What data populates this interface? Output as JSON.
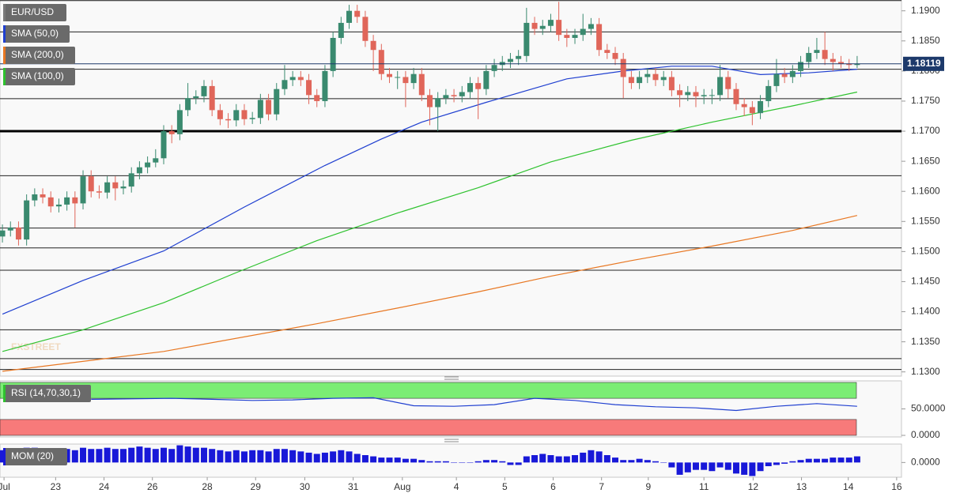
{
  "chart_data": [
    {
      "type": "candlestick",
      "title": "EUR/USD",
      "up_color": "#3a8a6f",
      "down_color": "#e0665a",
      "open": [
        1.1525,
        1.1535,
        1.154,
        1.152,
        1.1585,
        1.1595,
        1.159,
        1.1575,
        1.1578,
        1.159,
        1.158,
        1.1625,
        1.16,
        1.1598,
        1.1615,
        1.1605,
        1.1608,
        1.163,
        1.164,
        1.1648,
        1.1655,
        1.17,
        1.1695,
        1.1735,
        1.1755,
        1.1758,
        1.1775,
        1.1735,
        1.172,
        1.1718,
        1.1735,
        1.172,
        1.1722,
        1.1752,
        1.1728,
        1.177,
        1.1785,
        1.179,
        1.1785,
        1.176,
        1.175,
        1.18,
        1.1855,
        1.188,
        1.19,
        1.189,
        1.185,
        1.1835,
        1.1795,
        1.179,
        1.179,
        1.178,
        1.1795,
        1.176,
        1.174,
        1.1755,
        1.176,
        1.1758,
        1.1765,
        1.178,
        1.177,
        1.18,
        1.181,
        1.1815,
        1.182,
        1.1825,
        1.188,
        1.187,
        1.1875,
        1.1885,
        1.186,
        1.1855,
        1.186,
        1.187,
        1.1878,
        1.1835,
        1.183,
        1.182,
        1.179,
        1.178,
        1.179,
        1.1795,
        1.1785,
        1.179,
        1.1768,
        1.176,
        1.1765,
        1.1758,
        1.176,
        1.176,
        1.179,
        1.177,
        1.1745,
        1.174,
        1.173,
        1.175,
        1.1775,
        1.1795,
        1.179,
        1.18,
        1.1815,
        1.183,
        1.1835,
        1.182,
        1.1815,
        1.1812,
        1.181
      ],
      "high": [
        1.1545,
        1.155,
        1.155,
        1.1595,
        1.1605,
        1.1605,
        1.16,
        1.1588,
        1.16,
        1.16,
        1.1635,
        1.1635,
        1.161,
        1.1625,
        1.1625,
        1.1618,
        1.164,
        1.165,
        1.1658,
        1.167,
        1.171,
        1.171,
        1.1745,
        1.178,
        1.1768,
        1.1785,
        1.1785,
        1.1745,
        1.173,
        1.1745,
        1.1745,
        1.1732,
        1.1762,
        1.1762,
        1.178,
        1.181,
        1.18,
        1.18,
        1.1795,
        1.177,
        1.181,
        1.1865,
        1.189,
        1.191,
        1.191,
        1.19,
        1.186,
        1.1845,
        1.1805,
        1.18,
        1.18,
        1.1805,
        1.1805,
        1.177,
        1.1765,
        1.177,
        1.177,
        1.1775,
        1.179,
        1.179,
        1.181,
        1.182,
        1.1825,
        1.183,
        1.1835,
        1.1905,
        1.189,
        1.1885,
        1.1895,
        1.1915,
        1.187,
        1.187,
        1.1895,
        1.1888,
        1.1888,
        1.1845,
        1.184,
        1.183,
        1.18,
        1.18,
        1.1805,
        1.1805,
        1.18,
        1.18,
        1.1778,
        1.1775,
        1.1775,
        1.177,
        1.177,
        1.181,
        1.18,
        1.178,
        1.1755,
        1.175,
        1.176,
        1.1785,
        1.182,
        1.1805,
        1.181,
        1.1825,
        1.184,
        1.1855,
        1.1865,
        1.183,
        1.1825,
        1.182,
        1.1825
      ],
      "low": [
        1.1515,
        1.1525,
        1.151,
        1.151,
        1.1575,
        1.158,
        1.1565,
        1.1565,
        1.1568,
        1.154,
        1.157,
        1.159,
        1.1588,
        1.1588,
        1.1585,
        1.1595,
        1.1598,
        1.162,
        1.163,
        1.164,
        1.1645,
        1.168,
        1.1685,
        1.1725,
        1.1745,
        1.1748,
        1.1725,
        1.171,
        1.1705,
        1.1708,
        1.171,
        1.1712,
        1.1712,
        1.1718,
        1.1718,
        1.176,
        1.1775,
        1.1775,
        1.1745,
        1.174,
        1.174,
        1.179,
        1.1845,
        1.187,
        1.188,
        1.184,
        1.18,
        1.1785,
        1.178,
        1.177,
        1.174,
        1.177,
        1.175,
        1.171,
        1.17,
        1.1745,
        1.1748,
        1.1748,
        1.1755,
        1.172,
        1.176,
        1.179,
        1.18,
        1.1805,
        1.181,
        1.1815,
        1.186,
        1.186,
        1.1865,
        1.185,
        1.184,
        1.1845,
        1.185,
        1.186,
        1.1825,
        1.182,
        1.181,
        1.1755,
        1.177,
        1.177,
        1.178,
        1.1775,
        1.1775,
        1.1758,
        1.174,
        1.175,
        1.174,
        1.1745,
        1.1745,
        1.175,
        1.1755,
        1.1735,
        1.1725,
        1.171,
        1.172,
        1.174,
        1.1765,
        1.178,
        1.178,
        1.179,
        1.1805,
        1.182,
        1.181,
        1.18,
        1.1805,
        1.18,
        1.1805
      ],
      "close": [
        1.1535,
        1.154,
        1.152,
        1.1585,
        1.1595,
        1.159,
        1.1575,
        1.1578,
        1.159,
        1.158,
        1.1625,
        1.16,
        1.1598,
        1.1615,
        1.1605,
        1.1608,
        1.163,
        1.164,
        1.1648,
        1.1655,
        1.17,
        1.1695,
        1.1735,
        1.1755,
        1.1758,
        1.1775,
        1.1735,
        1.172,
        1.1718,
        1.1735,
        1.172,
        1.1722,
        1.1752,
        1.1728,
        1.177,
        1.1785,
        1.179,
        1.1785,
        1.176,
        1.175,
        1.18,
        1.1855,
        1.188,
        1.19,
        1.189,
        1.185,
        1.1835,
        1.1795,
        1.179,
        1.179,
        1.178,
        1.1795,
        1.176,
        1.174,
        1.1755,
        1.176,
        1.1758,
        1.1765,
        1.178,
        1.177,
        1.18,
        1.181,
        1.1815,
        1.182,
        1.1825,
        1.188,
        1.187,
        1.1875,
        1.1885,
        1.186,
        1.1855,
        1.186,
        1.187,
        1.1878,
        1.1835,
        1.183,
        1.182,
        1.179,
        1.178,
        1.179,
        1.1795,
        1.1785,
        1.179,
        1.1768,
        1.176,
        1.1765,
        1.1758,
        1.176,
        1.176,
        1.179,
        1.177,
        1.1745,
        1.174,
        1.173,
        1.175,
        1.1775,
        1.1795,
        1.179,
        1.18,
        1.1815,
        1.183,
        1.1835,
        1.182,
        1.1815,
        1.1812,
        1.181,
        1.1812
      ],
      "series": [
        {
          "name": "SMA (50,0)",
          "color": "#1f3fd0",
          "x": [
            0,
            10,
            20,
            30,
            40,
            47,
            52,
            60,
            70,
            77,
            83,
            88,
            94,
            100,
            106
          ],
          "values": [
            1.1396,
            1.1452,
            1.1501,
            1.1574,
            1.1643,
            1.1687,
            1.1715,
            1.1748,
            1.1787,
            1.18,
            1.1808,
            1.1808,
            1.1794,
            1.1797,
            1.1803
          ]
        },
        {
          "name": "SMA (200,0)",
          "color": "#e87722",
          "x": [
            0,
            20,
            39,
            49,
            59,
            68,
            78,
            88,
            98,
            106
          ],
          "values": [
            1.1301,
            1.1334,
            1.138,
            1.1406,
            1.1433,
            1.1459,
            1.1485,
            1.1509,
            1.1535,
            1.156
          ]
        },
        {
          "name": "SMA (100,0)",
          "color": "#2ec22e",
          "x": [
            0,
            10,
            20,
            29,
            39,
            49,
            59,
            68,
            78,
            88,
            98,
            106
          ],
          "values": [
            1.1334,
            1.137,
            1.1415,
            1.1465,
            1.1518,
            1.1564,
            1.1606,
            1.1649,
            1.1685,
            1.1715,
            1.1742,
            1.1765
          ]
        }
      ],
      "levels": [
        1.1917,
        1.1865,
        1.1803,
        1.1754,
        1.1626,
        1.1539,
        1.1506,
        1.1469,
        1.137,
        1.1322,
        1.1304
      ],
      "key_level": 1.17,
      "last_price": 1.18119,
      "last_price_color": "#1d3a6b",
      "watermark": "FXSTREET",
      "ylim": [
        1.1293,
        1.1918
      ],
      "yticks": [
        {
          "value": 1.19,
          "label": "1.1900"
        },
        {
          "value": 1.185,
          "label": "1.1850"
        },
        {
          "value": 1.18,
          "label": "1.1800"
        },
        {
          "value": 1.175,
          "label": "1.1750"
        },
        {
          "value": 1.17,
          "label": "1.1700"
        },
        {
          "value": 1.165,
          "label": "1.1650"
        },
        {
          "value": 1.16,
          "label": "1.1600"
        },
        {
          "value": 1.155,
          "label": "1.1550"
        },
        {
          "value": 1.15,
          "label": "1.1500"
        },
        {
          "value": 1.145,
          "label": "1.1450"
        },
        {
          "value": 1.14,
          "label": "1.1400"
        },
        {
          "value": 1.135,
          "label": "1.1350"
        },
        {
          "value": 1.13,
          "label": "1.1300"
        }
      ]
    },
    {
      "type": "line",
      "title": "RSI (14,70,30,1)",
      "color": "#1f3fd0",
      "x": [
        11,
        16,
        21,
        26,
        31,
        36,
        41,
        46,
        51,
        56,
        61,
        66,
        71,
        76,
        81,
        86,
        91,
        96,
        101,
        106
      ],
      "values": [
        68,
        69,
        70,
        68,
        66,
        67,
        70,
        71,
        56,
        55,
        58,
        70,
        66,
        58,
        54,
        52,
        47,
        55,
        60,
        55
      ],
      "bands": [
        {
          "from": 70,
          "to": 100,
          "color": "#7bed74"
        },
        {
          "from": 0,
          "to": 30,
          "color": "#f77a7a"
        }
      ],
      "ylim": [
        -3,
        103
      ],
      "yticks": [
        {
          "value": 50,
          "label": "50.0000"
        },
        {
          "value": 0,
          "label": "0.0000"
        }
      ]
    },
    {
      "type": "bar",
      "title": "MOM (20)",
      "color": "#1818d8",
      "values": [
        0.01,
        0.011,
        0.01,
        0.012,
        0.012,
        0.011,
        0.011,
        0.01,
        0.011,
        0.01,
        0.012,
        0.011,
        0.011,
        0.012,
        0.011,
        0.011,
        0.012,
        0.013,
        0.012,
        0.011,
        0.012,
        0.011,
        0.014,
        0.013,
        0.012,
        0.012,
        0.011,
        0.01,
        0.009,
        0.01,
        0.009,
        0.01,
        0.01,
        0.009,
        0.011,
        0.011,
        0.01,
        0.009,
        0.008,
        0.007,
        0.008,
        0.009,
        0.01,
        0.009,
        0.007,
        0.006,
        0.005,
        0.004,
        0.004,
        0.004,
        0.003,
        0.003,
        0.002,
        0.001,
        0.001,
        0.001,
        0.0,
        0.0,
        0.0,
        0.001,
        0.002,
        0.002,
        0.001,
        -0.002,
        -0.002,
        0.005,
        0.006,
        0.007,
        0.006,
        0.005,
        0.005,
        0.006,
        0.008,
        0.01,
        0.009,
        0.006,
        0.004,
        0.002,
        0.002,
        0.003,
        0.002,
        0.001,
        0.0,
        -0.004,
        -0.01,
        -0.008,
        -0.006,
        -0.006,
        -0.007,
        -0.004,
        -0.006,
        -0.009,
        -0.01,
        -0.011,
        -0.007,
        -0.003,
        -0.002,
        -0.001,
        0.001,
        0.002,
        0.003,
        0.003,
        0.003,
        0.004,
        0.004,
        0.004,
        0.005
      ],
      "ylim": [
        -0.012,
        0.015
      ],
      "yticks": [
        {
          "value": 0,
          "label": "0.0000"
        }
      ],
      "xlim": [
        -0.3,
        111.5
      ],
      "xticks": [
        {
          "value": 0.2,
          "label": "Jul"
        },
        {
          "value": 6.6,
          "label": "23"
        },
        {
          "value": 12.6,
          "label": "24"
        },
        {
          "value": 18.6,
          "label": "26"
        },
        {
          "value": 25.4,
          "label": "28"
        },
        {
          "value": 31.4,
          "label": "29"
        },
        {
          "value": 37.5,
          "label": "30"
        },
        {
          "value": 43.5,
          "label": "31"
        },
        {
          "value": 49.6,
          "label": "Aug"
        },
        {
          "value": 56.3,
          "label": "4"
        },
        {
          "value": 62.3,
          "label": "5"
        },
        {
          "value": 68.3,
          "label": "6"
        },
        {
          "value": 74.3,
          "label": "7"
        },
        {
          "value": 80.1,
          "label": "9"
        },
        {
          "value": 87.0,
          "label": "11"
        },
        {
          "value": 93.1,
          "label": "12"
        },
        {
          "value": 99.1,
          "label": "13"
        },
        {
          "value": 104.9,
          "label": "14"
        },
        {
          "value": 110.9,
          "label": "16"
        }
      ]
    }
  ]
}
